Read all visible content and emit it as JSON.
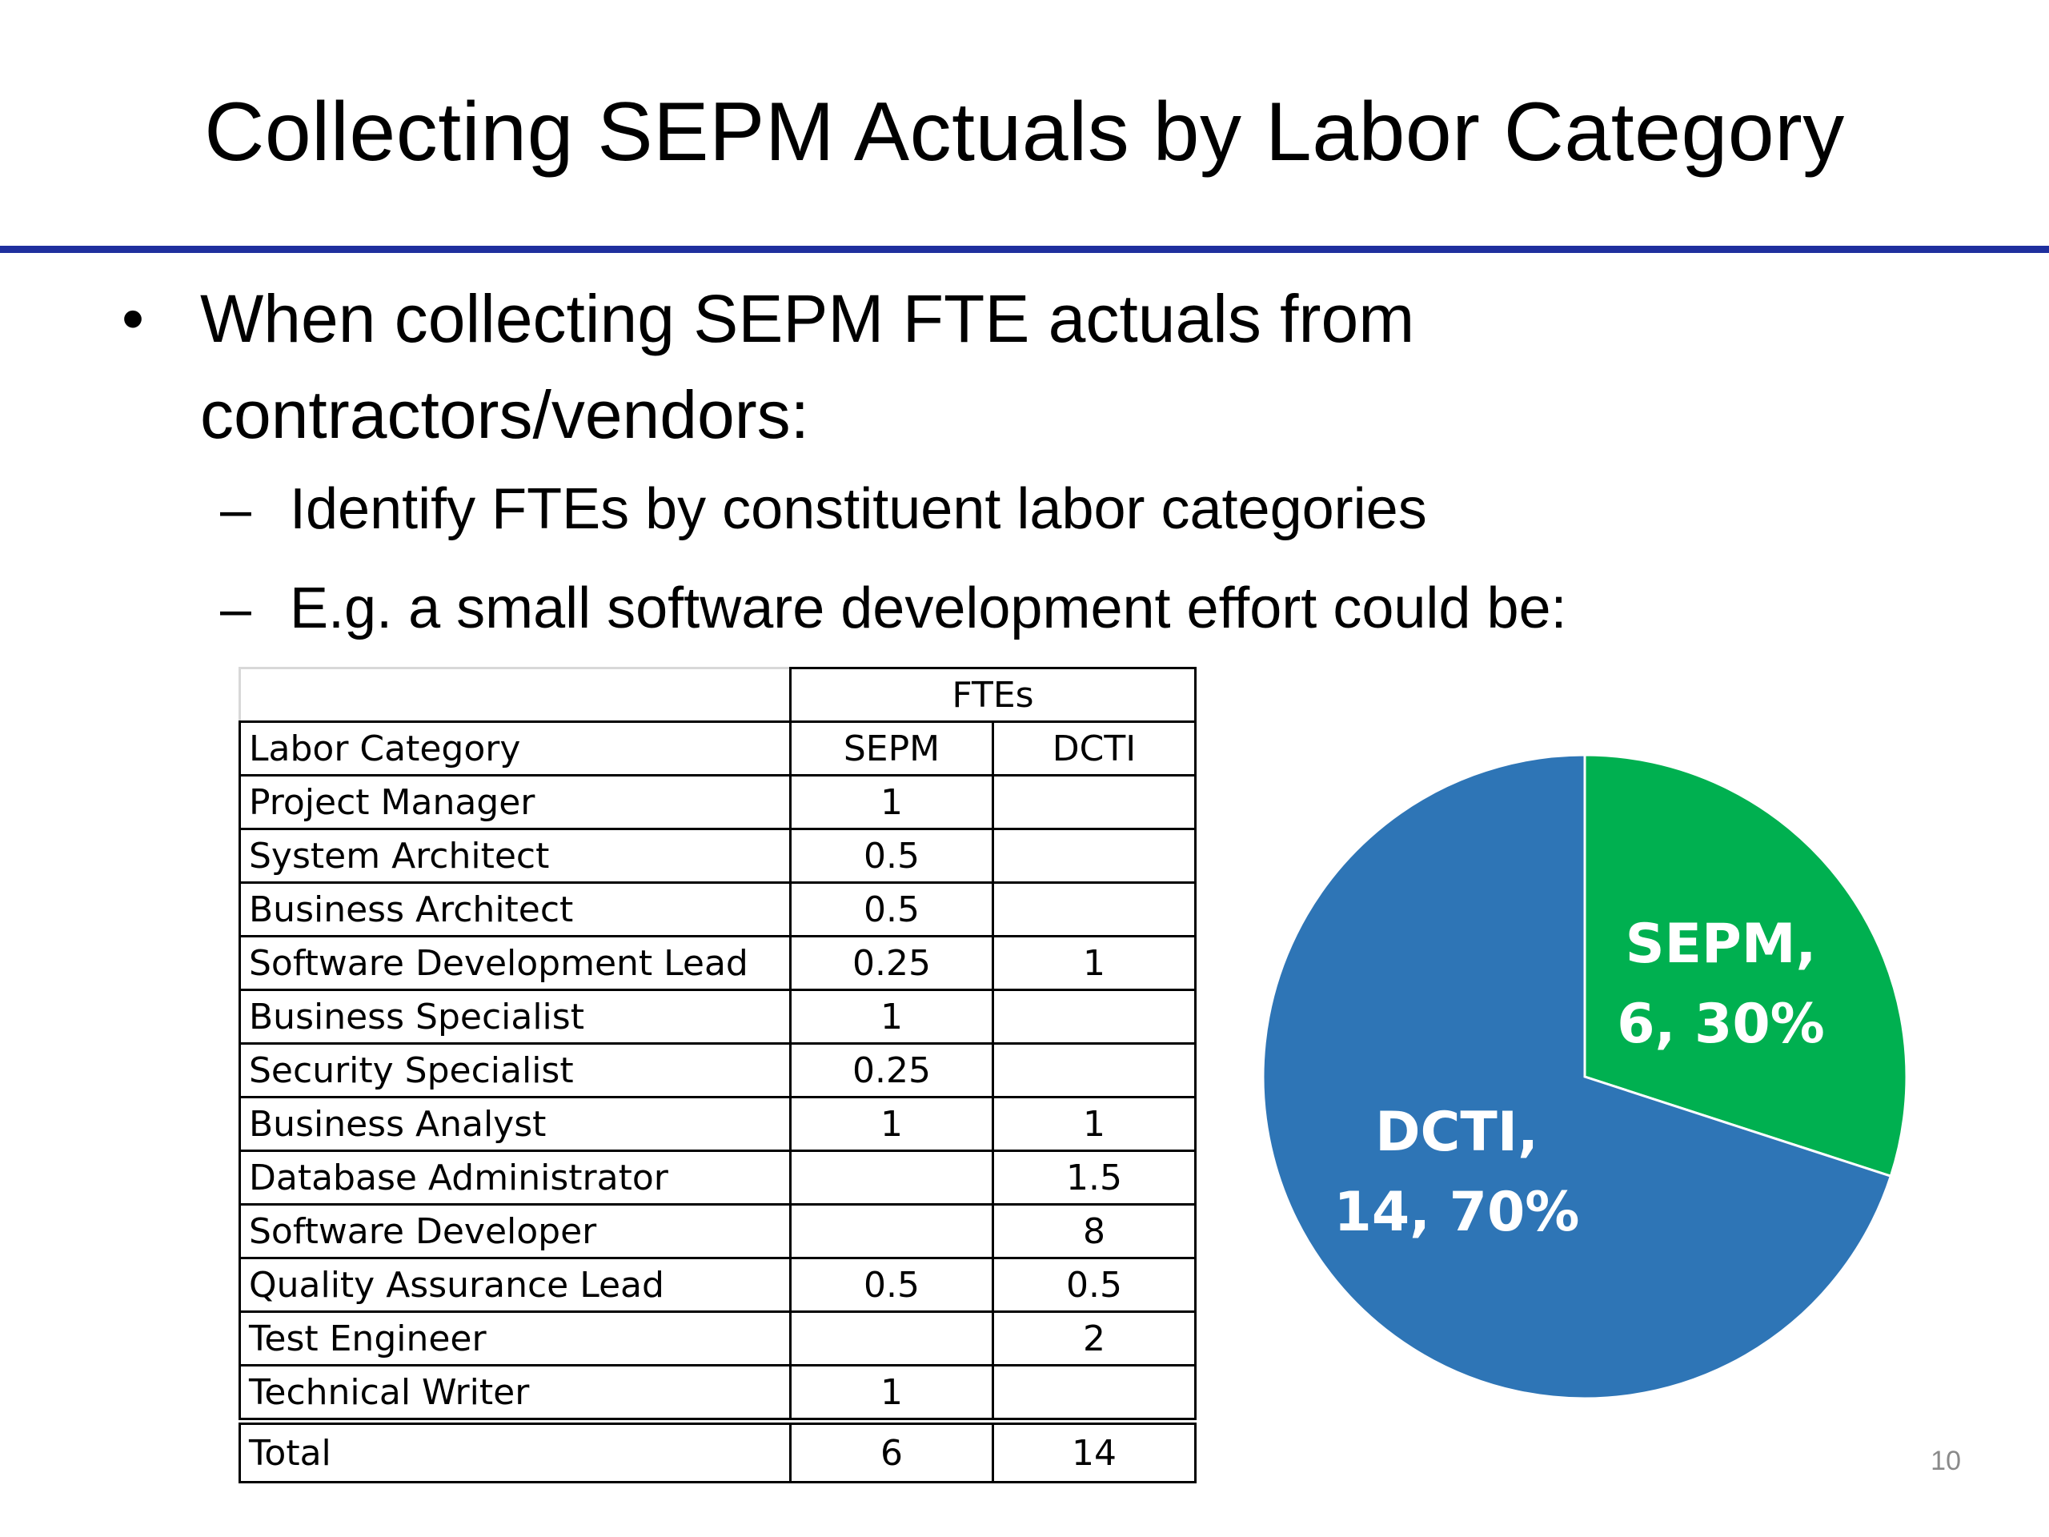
{
  "slide": {
    "title": "Collecting SEPM Actuals by Labor Category",
    "bullet": {
      "marker": "•",
      "text": "When collecting SEPM FTE actuals from contractors/vendors:"
    },
    "sub_bullets": [
      {
        "marker": "–",
        "text": "Identify FTEs by constituent labor categories"
      },
      {
        "marker": "–",
        "text": "E.g. a small software development effort could be:"
      }
    ],
    "page_number": "10"
  },
  "table": {
    "group_header": "FTEs",
    "columns": [
      "Labor Category",
      "SEPM",
      "DCTI"
    ],
    "rows": [
      [
        "Project Manager",
        "1",
        ""
      ],
      [
        "System Architect",
        "0.5",
        ""
      ],
      [
        "Business Architect",
        "0.5",
        ""
      ],
      [
        "Software Development Lead",
        "0.25",
        "1"
      ],
      [
        "Business Specialist",
        "1",
        ""
      ],
      [
        "Security Specialist",
        "0.25",
        ""
      ],
      [
        "Business Analyst",
        "1",
        "1"
      ],
      [
        "Database Administrator",
        "",
        "1.5"
      ],
      [
        "Software Developer",
        "",
        "8"
      ],
      [
        "Quality Assurance Lead",
        "0.5",
        "0.5"
      ],
      [
        "Test Engineer",
        "",
        "2"
      ],
      [
        "Technical Writer",
        "1",
        ""
      ]
    ],
    "total": [
      "Total",
      "6",
      "14"
    ]
  },
  "chart_data": {
    "type": "pie",
    "slices": [
      {
        "name": "SEPM",
        "value": 6,
        "percent": 30,
        "color": "#00b050",
        "label_line1": "SEPM,",
        "label_line2": "6, 30%"
      },
      {
        "name": "DCTI",
        "value": 14,
        "percent": 70,
        "color": "#2e75b6",
        "label_line1": "DCTI,",
        "label_line2": "14, 70%"
      }
    ],
    "start_angle_deg": 0,
    "direction": "clockwise",
    "legend": "none"
  }
}
